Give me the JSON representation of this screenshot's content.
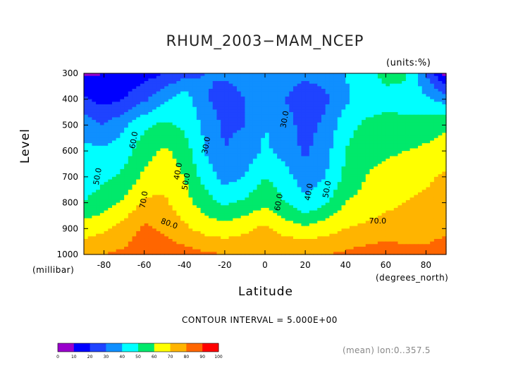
{
  "chart_data": {
    "type": "heatmap",
    "title": "RHUM_2003−MAM_NCEP",
    "units_label": "(units:%)",
    "xlabel": "Latitude",
    "x_units_label": "(degrees_north)",
    "ylabel": "Level",
    "y_units_label": "(millibar)",
    "x_ticks": [
      -80,
      -60,
      -40,
      -20,
      0,
      20,
      40,
      60,
      80
    ],
    "y_ticks": [
      300,
      400,
      500,
      600,
      700,
      800,
      900,
      1000
    ],
    "xlim": [
      -90,
      90
    ],
    "ylim": [
      1000,
      300
    ],
    "contour_interval_label": "CONTOUR INTERVAL = 5.000E+00",
    "footnote": "(mean) lon:0..357.5",
    "levels": [
      0,
      10,
      20,
      30,
      40,
      50,
      60,
      70,
      80,
      90,
      100
    ],
    "colors": [
      "#9900cc",
      "#0000ff",
      "#1f43ff",
      "#0f8fff",
      "#00ffff",
      "#00e96b",
      "#ffff00",
      "#ffb400",
      "#ff6600",
      "#ff0000"
    ],
    "grid_lat": [
      -90,
      -80,
      -70,
      -60,
      -50,
      -40,
      -30,
      -20,
      -10,
      0,
      10,
      20,
      30,
      40,
      50,
      60,
      70,
      80,
      90
    ],
    "grid_lev": [
      300,
      400,
      500,
      600,
      700,
      800,
      900,
      1000
    ],
    "grid_values": [
      [
        8,
        10,
        12,
        15,
        20,
        26,
        30,
        32,
        34,
        36,
        35,
        32,
        34,
        40,
        48,
        52,
        52,
        30,
        5
      ],
      [
        22,
        16,
        20,
        28,
        38,
        46,
        32,
        24,
        30,
        36,
        30,
        24,
        28,
        38,
        45,
        48,
        46,
        42,
        35
      ],
      [
        36,
        30,
        38,
        48,
        52,
        48,
        38,
        28,
        30,
        40,
        34,
        26,
        32,
        46,
        52,
        52,
        53,
        55,
        58
      ],
      [
        42,
        42,
        46,
        56,
        62,
        55,
        40,
        30,
        34,
        42,
        36,
        28,
        36,
        50,
        56,
        58,
        60,
        62,
        65
      ],
      [
        45,
        48,
        52,
        62,
        66,
        60,
        46,
        36,
        40,
        50,
        44,
        34,
        40,
        52,
        60,
        64,
        66,
        68,
        72
      ],
      [
        50,
        55,
        62,
        72,
        72,
        64,
        55,
        48,
        52,
        58,
        50,
        42,
        48,
        60,
        64,
        68,
        70,
        72,
        75
      ],
      [
        65,
        68,
        74,
        82,
        78,
        72,
        66,
        64,
        68,
        72,
        66,
        62,
        66,
        70,
        72,
        74,
        74,
        74,
        78
      ],
      [
        78,
        80,
        82,
        86,
        85,
        84,
        82,
        80,
        78,
        80,
        80,
        80,
        80,
        82,
        84,
        86,
        84,
        84,
        86
      ]
    ],
    "contour_labels": [
      "60.0",
      "50.0",
      "70.0",
      "80.0",
      "30.0",
      "40.0",
      "50.0",
      "30.0",
      "60.0",
      "40.0",
      "50.0",
      "70.0"
    ],
    "colorbar_ticks": [
      "0",
      "10",
      "20",
      "30",
      "40",
      "50",
      "60",
      "70",
      "80",
      "90",
      "100"
    ]
  }
}
